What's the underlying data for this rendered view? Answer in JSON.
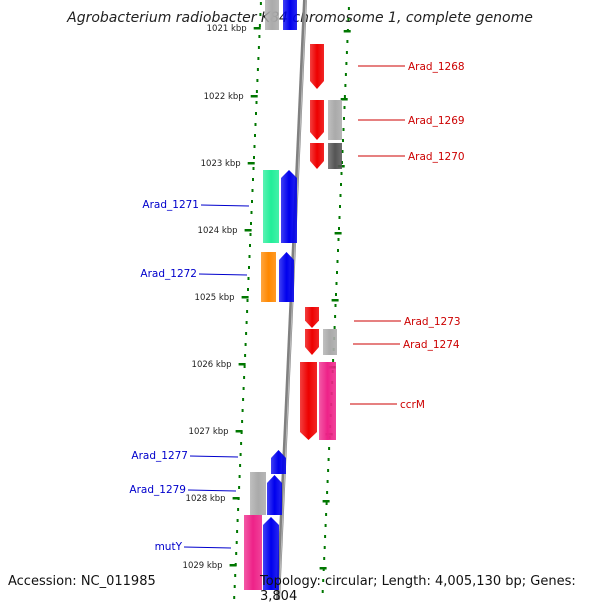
{
  "title": "Agrobacterium radiobacter K84 chromosome 1, complete genome",
  "footer": {
    "accession": "Accession: NC_011985",
    "summary": "Topology: circular; Length: 4,005,130 bp; Genes: 3,804"
  },
  "colors": {
    "backbone": "#808080",
    "forward_label": "#0000cc",
    "reverse_label": "#cc0000",
    "tick": "#007700",
    "red": "#ee0000",
    "blue": "#0000ee",
    "grey": "#aaaaaa",
    "dark_grey": "#555555",
    "green": "#22ee99",
    "orange": "#ff8800",
    "pink": "#ee2288"
  },
  "ticks": [
    {
      "label": "1021 kbp"
    },
    {
      "label": "1022 kbp"
    },
    {
      "label": "1023 kbp"
    },
    {
      "label": "1024 kbp"
    },
    {
      "label": "1025 kbp"
    },
    {
      "label": "1026 kbp"
    },
    {
      "label": "1027 kbp"
    },
    {
      "label": "1028 kbp"
    },
    {
      "label": "1029 kbp"
    }
  ],
  "genes": [
    {
      "name": "Arad_1268",
      "strand": "reverse",
      "color": "red"
    },
    {
      "name": "Arad_1269",
      "strand": "reverse",
      "color": "red"
    },
    {
      "name": "Arad_1270",
      "strand": "reverse",
      "color": "red"
    },
    {
      "name": "Arad_1271",
      "strand": "forward",
      "color": "blue"
    },
    {
      "name": "Arad_1272",
      "strand": "forward",
      "color": "blue"
    },
    {
      "name": "Arad_1273",
      "strand": "reverse",
      "color": "red"
    },
    {
      "name": "Arad_1274",
      "strand": "reverse",
      "color": "red"
    },
    {
      "name": "ccrM",
      "strand": "reverse",
      "color": "red"
    },
    {
      "name": "Arad_1277",
      "strand": "forward",
      "color": "blue"
    },
    {
      "name": "Arad_1279",
      "strand": "forward",
      "color": "blue"
    },
    {
      "name": "mutY",
      "strand": "forward",
      "color": "blue"
    }
  ]
}
